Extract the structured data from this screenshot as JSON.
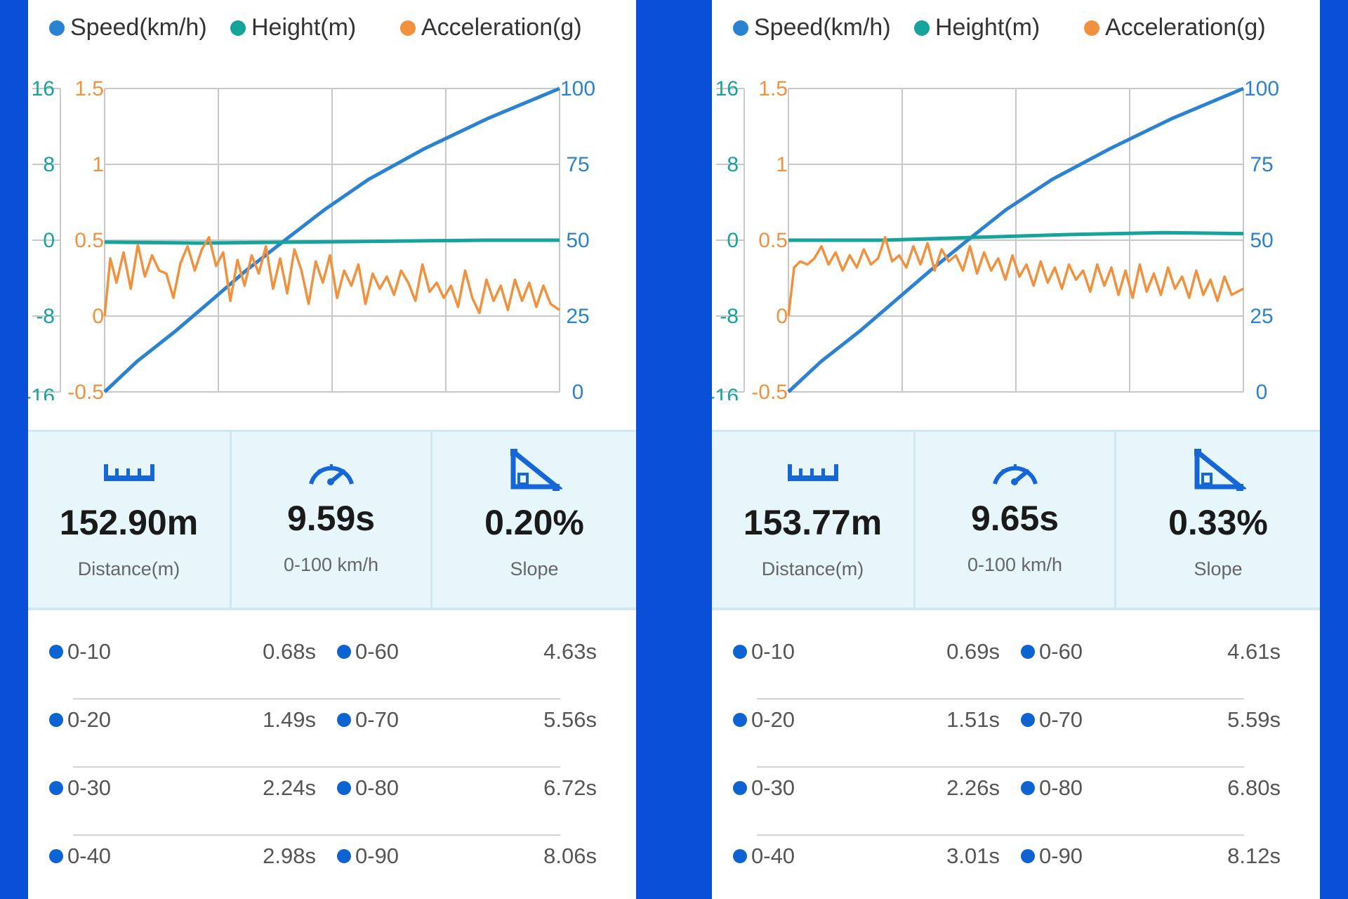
{
  "colors": {
    "background": "#0a4fd8",
    "speed": "#2b82d0",
    "height": "#16a39c",
    "acceleration": "#f1913d",
    "split_dot": "#0d63d2",
    "stats_bg": "#e6f6fb"
  },
  "panels": [
    {
      "legend": [
        "Speed(km/h)",
        "Height(m)",
        "Acceleration(g)"
      ],
      "chart_data": {
        "type": "line",
        "y_height_ticks": [
          "16",
          "8",
          "0",
          "-8",
          "-16"
        ],
        "y_accel_ticks": [
          "1.5",
          "1",
          "0.5",
          "0",
          "-0.5"
        ],
        "y_speed_ticks": [
          "100",
          "75",
          "50",
          "25",
          "0"
        ],
        "xlim": [
          0,
          9.59
        ],
        "grid": true,
        "series": [
          {
            "name": "Speed(km/h)",
            "axis": "speed",
            "x": [
              0,
              0.68,
              1.49,
              2.24,
              2.98,
              3.8,
              4.63,
              5.56,
              6.72,
              8.06,
              9.59
            ],
            "values": [
              0,
              10,
              20,
              30,
              40,
              50,
              60,
              70,
              80,
              90,
              100
            ]
          },
          {
            "name": "Height(m)",
            "axis": "height",
            "x": [
              0,
              2,
              4,
              6,
              8,
              9.59
            ],
            "values": [
              -0.2,
              -0.3,
              -0.2,
              -0.1,
              0.0,
              0.0
            ]
          },
          {
            "name": "Acceleration(g)",
            "axis": "accel",
            "x": [
              0,
              0.12,
              0.25,
              0.4,
              0.55,
              0.7,
              0.85,
              1.0,
              1.15,
              1.3,
              1.45,
              1.6,
              1.75,
              1.9,
              2.05,
              2.2,
              2.35,
              2.5,
              2.65,
              2.8,
              2.95,
              3.1,
              3.25,
              3.4,
              3.55,
              3.7,
              3.85,
              4.0,
              4.15,
              4.3,
              4.45,
              4.6,
              4.75,
              4.9,
              5.05,
              5.2,
              5.35,
              5.5,
              5.65,
              5.8,
              5.95,
              6.1,
              6.25,
              6.4,
              6.55,
              6.7,
              6.85,
              7.0,
              7.15,
              7.3,
              7.45,
              7.6,
              7.75,
              7.9,
              8.05,
              8.2,
              8.35,
              8.5,
              8.65,
              8.8,
              8.95,
              9.1,
              9.25,
              9.4,
              9.59
            ],
            "values": [
              0.0,
              0.38,
              0.22,
              0.42,
              0.18,
              0.47,
              0.26,
              0.4,
              0.3,
              0.28,
              0.12,
              0.35,
              0.46,
              0.3,
              0.44,
              0.52,
              0.33,
              0.42,
              0.1,
              0.37,
              0.2,
              0.4,
              0.28,
              0.46,
              0.18,
              0.38,
              0.15,
              0.44,
              0.3,
              0.08,
              0.36,
              0.22,
              0.4,
              0.12,
              0.3,
              0.2,
              0.34,
              0.08,
              0.28,
              0.18,
              0.26,
              0.14,
              0.3,
              0.22,
              0.1,
              0.34,
              0.16,
              0.22,
              0.12,
              0.2,
              0.06,
              0.3,
              0.12,
              0.02,
              0.24,
              0.1,
              0.2,
              0.04,
              0.24,
              0.1,
              0.22,
              0.06,
              0.2,
              0.08,
              0.04
            ]
          }
        ]
      },
      "stats": [
        {
          "icon": "ruler-icon",
          "value": "152.90m",
          "label": "Distance(m)"
        },
        {
          "icon": "speedometer-icon",
          "value": "9.59s",
          "label": "0-100 km/h"
        },
        {
          "icon": "slope-icon",
          "value": "0.20%",
          "label": "Slope"
        }
      ],
      "splits": [
        [
          {
            "range": "0-10",
            "time": "0.68s"
          },
          {
            "range": "0-60",
            "time": "4.63s"
          }
        ],
        [
          {
            "range": "0-20",
            "time": "1.49s"
          },
          {
            "range": "0-70",
            "time": "5.56s"
          }
        ],
        [
          {
            "range": "0-30",
            "time": "2.24s"
          },
          {
            "range": "0-80",
            "time": "6.72s"
          }
        ],
        [
          {
            "range": "0-40",
            "time": "2.98s"
          },
          {
            "range": "0-90",
            "time": "8.06s"
          }
        ]
      ]
    },
    {
      "legend": [
        "Speed(km/h)",
        "Height(m)",
        "Acceleration(g)"
      ],
      "chart_data": {
        "type": "line",
        "y_height_ticks": [
          "16",
          "8",
          "0",
          "-8",
          "-16"
        ],
        "y_accel_ticks": [
          "1.5",
          "1",
          "0.5",
          "0",
          "-0.5"
        ],
        "y_speed_ticks": [
          "100",
          "75",
          "50",
          "25",
          "0"
        ],
        "xlim": [
          0,
          9.65
        ],
        "grid": true,
        "series": [
          {
            "name": "Speed(km/h)",
            "axis": "speed",
            "x": [
              0,
              0.69,
              1.51,
              2.26,
              3.01,
              3.8,
              4.61,
              5.59,
              6.8,
              8.12,
              9.65
            ],
            "values": [
              0,
              10,
              20,
              30,
              40,
              50,
              60,
              70,
              80,
              90,
              100
            ]
          },
          {
            "name": "Height(m)",
            "axis": "height",
            "x": [
              0,
              2,
              4,
              6,
              8,
              9.65
            ],
            "values": [
              0.0,
              0.0,
              0.3,
              0.6,
              0.8,
              0.7
            ]
          },
          {
            "name": "Acceleration(g)",
            "axis": "accel",
            "x": [
              0,
              0.12,
              0.25,
              0.4,
              0.55,
              0.7,
              0.85,
              1.0,
              1.15,
              1.3,
              1.45,
              1.6,
              1.75,
              1.9,
              2.05,
              2.2,
              2.35,
              2.5,
              2.65,
              2.8,
              2.95,
              3.1,
              3.25,
              3.4,
              3.55,
              3.7,
              3.85,
              4.0,
              4.15,
              4.3,
              4.45,
              4.6,
              4.75,
              4.9,
              5.05,
              5.2,
              5.35,
              5.5,
              5.65,
              5.8,
              5.95,
              6.1,
              6.25,
              6.4,
              6.55,
              6.7,
              6.85,
              7.0,
              7.15,
              7.3,
              7.45,
              7.6,
              7.75,
              7.9,
              8.05,
              8.2,
              8.35,
              8.5,
              8.65,
              8.8,
              8.95,
              9.1,
              9.25,
              9.4,
              9.65
            ],
            "values": [
              0.0,
              0.32,
              0.36,
              0.34,
              0.38,
              0.46,
              0.34,
              0.42,
              0.3,
              0.4,
              0.32,
              0.44,
              0.34,
              0.38,
              0.52,
              0.36,
              0.4,
              0.32,
              0.46,
              0.34,
              0.48,
              0.3,
              0.44,
              0.36,
              0.4,
              0.3,
              0.46,
              0.28,
              0.42,
              0.3,
              0.38,
              0.24,
              0.4,
              0.26,
              0.34,
              0.2,
              0.36,
              0.22,
              0.32,
              0.18,
              0.34,
              0.24,
              0.3,
              0.16,
              0.34,
              0.2,
              0.32,
              0.14,
              0.3,
              0.12,
              0.34,
              0.16,
              0.28,
              0.14,
              0.32,
              0.18,
              0.26,
              0.12,
              0.3,
              0.14,
              0.24,
              0.1,
              0.26,
              0.14,
              0.18
            ]
          }
        ]
      },
      "stats": [
        {
          "icon": "ruler-icon",
          "value": "153.77m",
          "label": "Distance(m)"
        },
        {
          "icon": "speedometer-icon",
          "value": "9.65s",
          "label": "0-100 km/h"
        },
        {
          "icon": "slope-icon",
          "value": "0.33%",
          "label": "Slope"
        }
      ],
      "splits": [
        [
          {
            "range": "0-10",
            "time": "0.69s"
          },
          {
            "range": "0-60",
            "time": "4.61s"
          }
        ],
        [
          {
            "range": "0-20",
            "time": "1.51s"
          },
          {
            "range": "0-70",
            "time": "5.59s"
          }
        ],
        [
          {
            "range": "0-30",
            "time": "2.26s"
          },
          {
            "range": "0-80",
            "time": "6.80s"
          }
        ],
        [
          {
            "range": "0-40",
            "time": "3.01s"
          },
          {
            "range": "0-90",
            "time": "8.12s"
          }
        ]
      ]
    }
  ]
}
